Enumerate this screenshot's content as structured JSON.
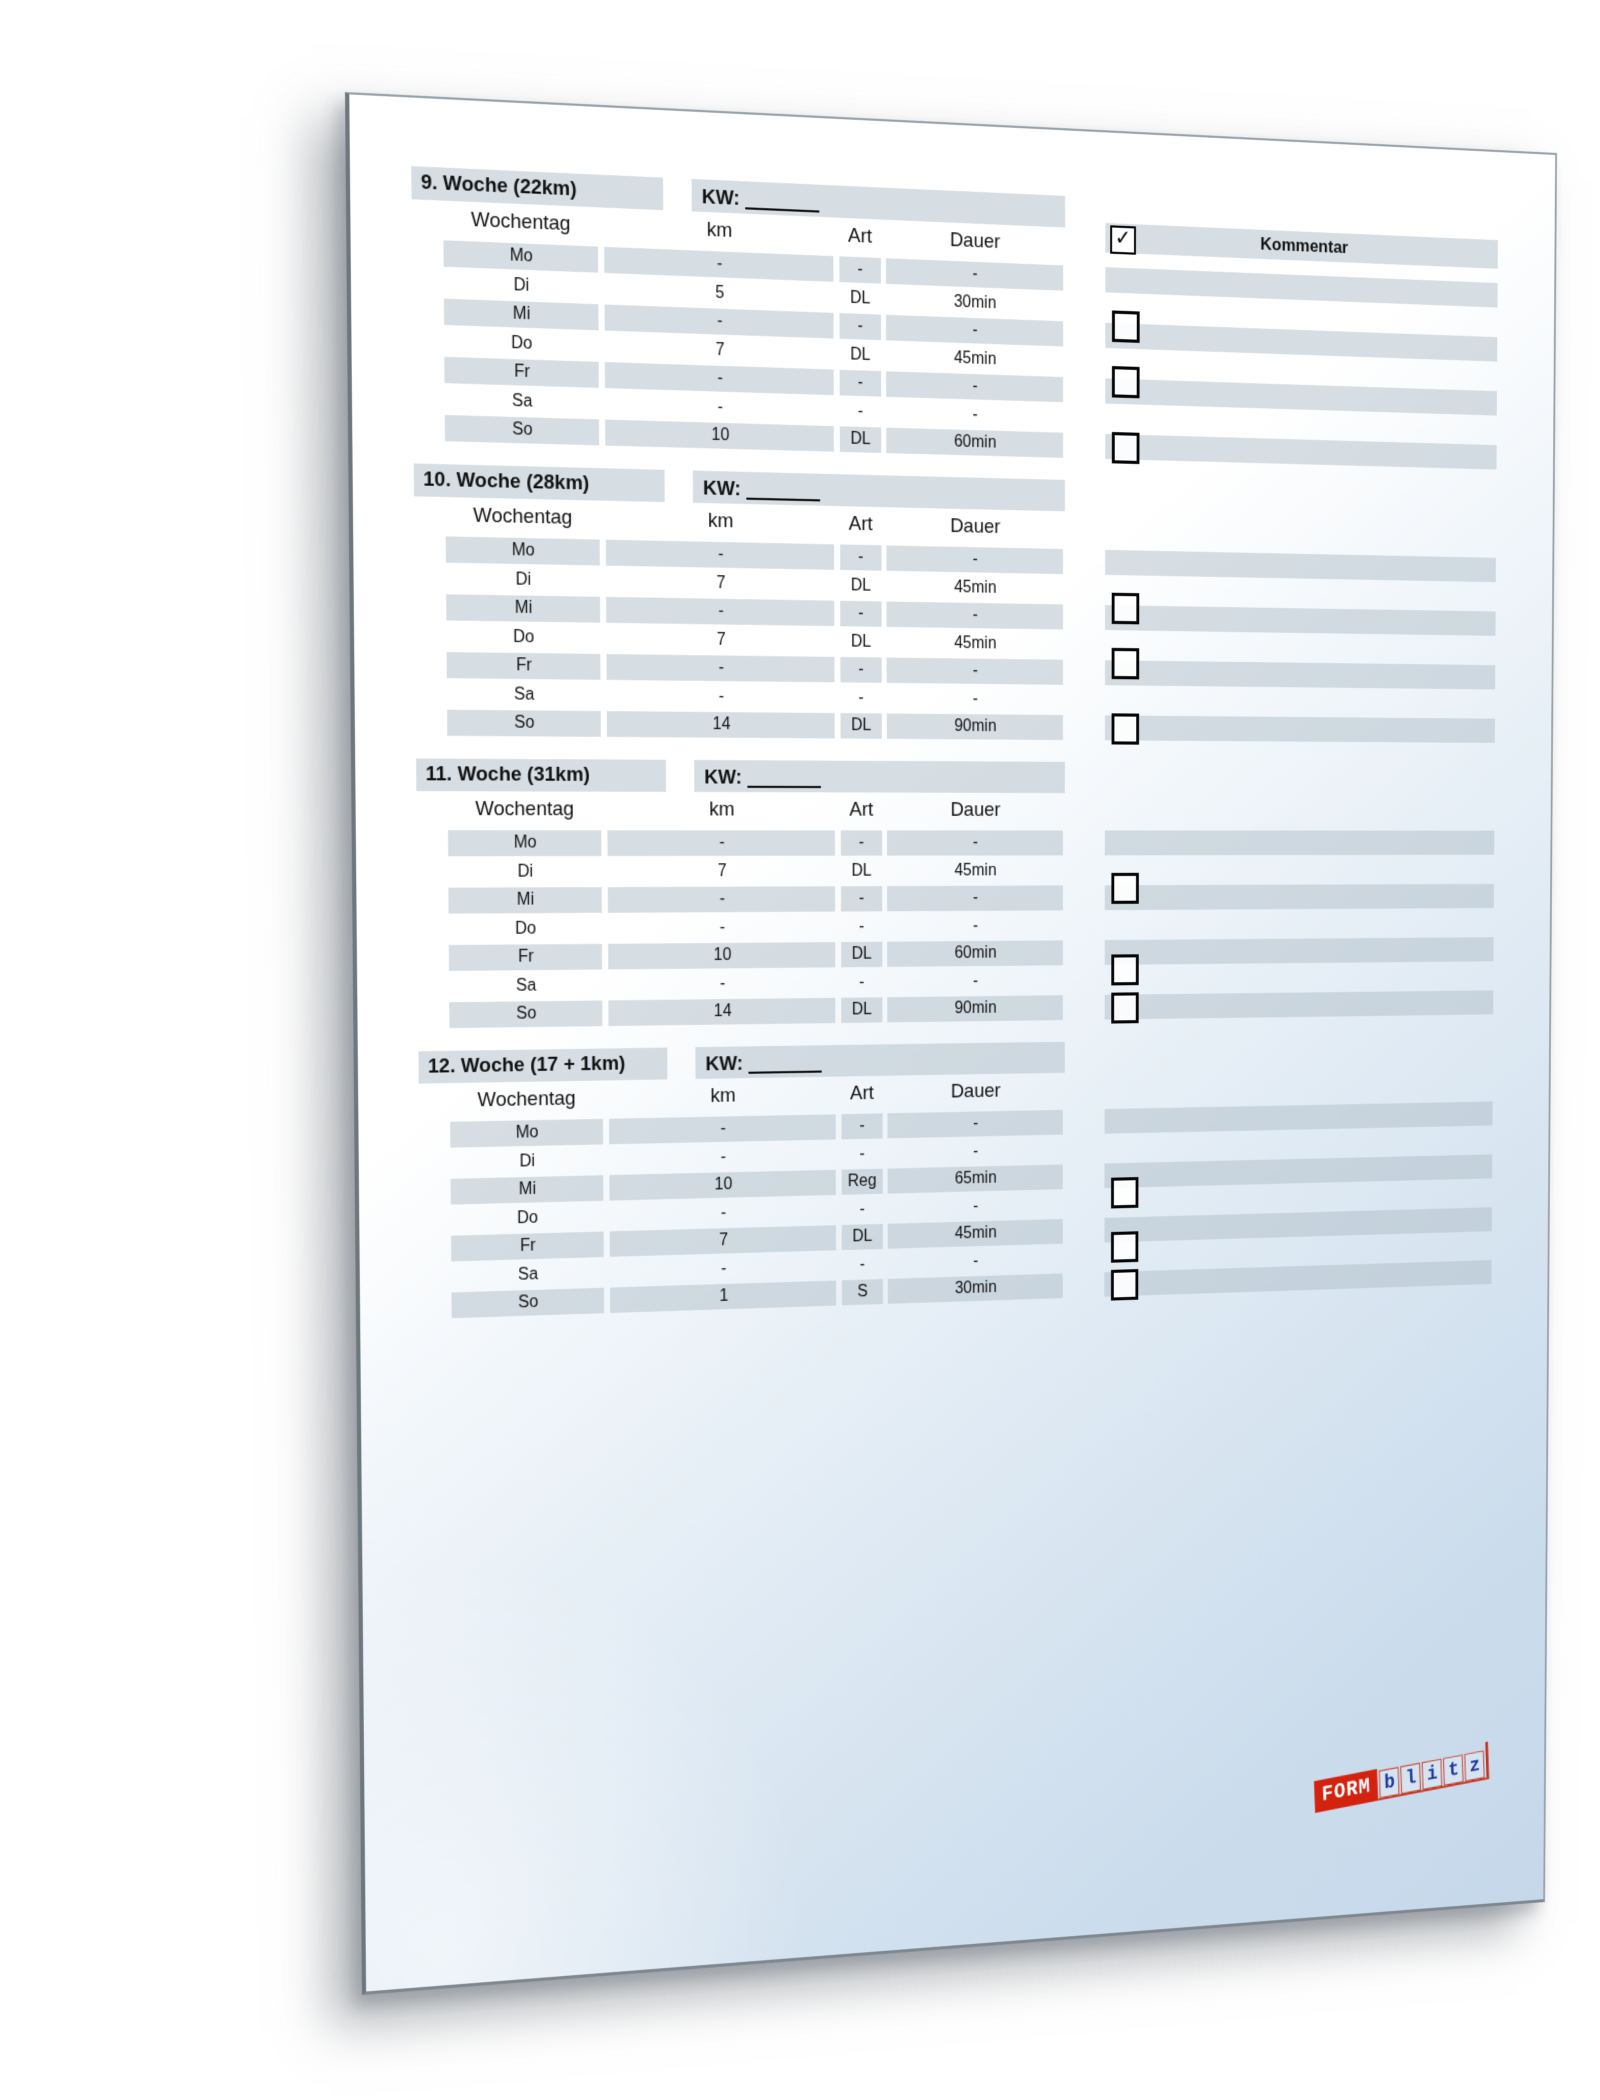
{
  "page": {
    "kw_label": "KW:",
    "columns": [
      "Wochentag",
      "km",
      "Art",
      "Dauer"
    ],
    "kommentar": {
      "label": "Kommentar",
      "header_checkbox_checked": true,
      "check_glyph": "✓"
    },
    "weeks": [
      {
        "title": "9. Woche (22km)",
        "rows": [
          {
            "day": "Mo",
            "km": "-",
            "art": "-",
            "dauer": "-"
          },
          {
            "day": "Di",
            "km": "5",
            "art": "DL",
            "dauer": "30min"
          },
          {
            "day": "Mi",
            "km": "-",
            "art": "-",
            "dauer": "-"
          },
          {
            "day": "Do",
            "km": "7",
            "art": "DL",
            "dauer": "45min"
          },
          {
            "day": "Fr",
            "km": "-",
            "art": "-",
            "dauer": "-"
          },
          {
            "day": "Sa",
            "km": "-",
            "art": "-",
            "dauer": "-"
          },
          {
            "day": "So",
            "km": "10",
            "art": "DL",
            "dauer": "60min"
          }
        ],
        "checkbox_rows": [
          1,
          3,
          6
        ]
      },
      {
        "title": "10. Woche (28km)",
        "rows": [
          {
            "day": "Mo",
            "km": "-",
            "art": "-",
            "dauer": "-"
          },
          {
            "day": "Di",
            "km": "7",
            "art": "DL",
            "dauer": "45min"
          },
          {
            "day": "Mi",
            "km": "-",
            "art": "-",
            "dauer": "-"
          },
          {
            "day": "Do",
            "km": "7",
            "art": "DL",
            "dauer": "45min"
          },
          {
            "day": "Fr",
            "km": "-",
            "art": "-",
            "dauer": "-"
          },
          {
            "day": "Sa",
            "km": "-",
            "art": "-",
            "dauer": "-"
          },
          {
            "day": "So",
            "km": "14",
            "art": "DL",
            "dauer": "90min"
          }
        ],
        "checkbox_rows": [
          1,
          3,
          6
        ]
      },
      {
        "title": "11. Woche (31km)",
        "rows": [
          {
            "day": "Mo",
            "km": "-",
            "art": "-",
            "dauer": "-"
          },
          {
            "day": "Di",
            "km": "7",
            "art": "DL",
            "dauer": "45min"
          },
          {
            "day": "Mi",
            "km": "-",
            "art": "-",
            "dauer": "-"
          },
          {
            "day": "Do",
            "km": "-",
            "art": "-",
            "dauer": "-"
          },
          {
            "day": "Fr",
            "km": "10",
            "art": "DL",
            "dauer": "60min"
          },
          {
            "day": "Sa",
            "km": "-",
            "art": "-",
            "dauer": "-"
          },
          {
            "day": "So",
            "km": "14",
            "art": "DL",
            "dauer": "90min"
          }
        ],
        "checkbox_rows": [
          1,
          4,
          6
        ]
      },
      {
        "title": "12. Woche (17 + 1km)",
        "rows": [
          {
            "day": "Mo",
            "km": "-",
            "art": "-",
            "dauer": "-"
          },
          {
            "day": "Di",
            "km": "-",
            "art": "-",
            "dauer": "-"
          },
          {
            "day": "Mi",
            "km": "10",
            "art": "Reg",
            "dauer": "65min"
          },
          {
            "day": "Do",
            "km": "-",
            "art": "-",
            "dauer": "-"
          },
          {
            "day": "Fr",
            "km": "7",
            "art": "DL",
            "dauer": "45min"
          },
          {
            "day": "Sa",
            "km": "-",
            "art": "-",
            "dauer": "-"
          },
          {
            "day": "So",
            "km": "1",
            "art": "S",
            "dauer": "30min"
          }
        ],
        "checkbox_rows": [
          2,
          4,
          6
        ]
      }
    ],
    "logo": {
      "form": "FORM",
      "blitz_letters": [
        "b",
        "l",
        "i",
        "t",
        "z"
      ]
    },
    "colors": {
      "row_bar": "#d7dee3",
      "page_tint_bottom": "#c5d8ea",
      "logo_red": "#d3220e",
      "logo_blue": "#20389f",
      "text": "#111111"
    }
  }
}
